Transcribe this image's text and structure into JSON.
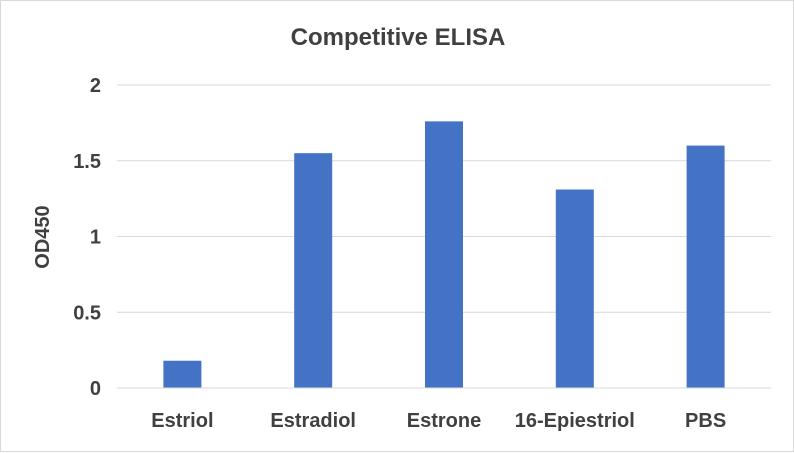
{
  "chart_data": {
    "type": "bar",
    "title": "Competitive ELISA",
    "xlabel": "",
    "ylabel": "OD450",
    "categories": [
      "Estriol",
      "Estradiol",
      "Estrone",
      "16-Epiestriol",
      "PBS"
    ],
    "values": [
      0.18,
      1.55,
      1.76,
      1.31,
      1.6
    ],
    "ylim": [
      0,
      2
    ],
    "yticks": [
      "0",
      "0.5",
      "1",
      "1.5",
      "2"
    ],
    "grid": true,
    "legend": "none",
    "bar_color": "#4472C4"
  }
}
